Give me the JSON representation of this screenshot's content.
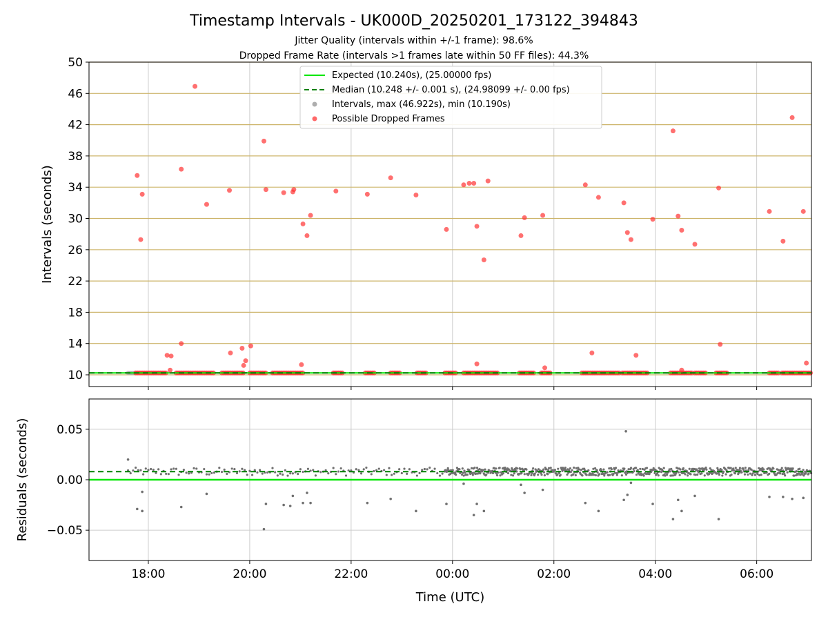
{
  "chart_data": [
    {
      "type": "scatter",
      "title": "Timestamp Intervals - UK000D_20250201_173122_394843",
      "subtitle_lines": [
        "Jitter Quality (intervals within +/-1 frame): 98.6%",
        "Dropped Frame Rate (intervals >1 frames late within 50 FF files): 44.3%"
      ],
      "ylabel": "Intervals (seconds)",
      "ylim": [
        8.5,
        50
      ],
      "yticks": [
        10,
        14,
        18,
        22,
        26,
        30,
        34,
        38,
        42,
        46,
        50
      ],
      "xlim_hours": [
        -7.17,
        7.08
      ],
      "xticks_hours": [
        -6,
        -4,
        -2,
        0,
        2,
        4,
        6
      ],
      "xtick_labels": [
        "18:00",
        "20:00",
        "22:00",
        "00:00",
        "02:00",
        "04:00",
        "06:00"
      ],
      "horizontal_grid_color": "#cdb56b",
      "vertical_grid_color": "#cccccc",
      "legend": {
        "placement": "top-center",
        "entries": [
          {
            "label": "Expected (10.240s), (25.00000 fps)",
            "kind": "line",
            "color": "#00e600"
          },
          {
            "label": "Median (10.248 +/- 0.001 s), (24.98099 +/- 0.00 fps)",
            "kind": "dashed-line",
            "color": "#008000"
          },
          {
            "label": "Intervals, max (46.922s), min (10.190s)",
            "kind": "point",
            "color": "#a0a0a0"
          },
          {
            "label": "Possible Dropped Frames",
            "kind": "point",
            "color": "#ff4d4d"
          }
        ]
      },
      "expected_line": 10.24,
      "median_line": 10.248,
      "baseline_start_hour": -6.4,
      "baseline_points": {
        "y": 10.24,
        "x_ranges_hours": [
          [
            -6.25,
            -5.65
          ],
          [
            -5.45,
            -4.7
          ],
          [
            -4.55,
            -4.1
          ],
          [
            -4.0,
            -3.65
          ],
          [
            -3.55,
            -2.95
          ],
          [
            -2.35,
            -2.15
          ],
          [
            -1.72,
            -1.52
          ],
          [
            -1.22,
            -1.02
          ],
          [
            -0.7,
            -0.5
          ],
          [
            -0.15,
            0.08
          ],
          [
            0.22,
            0.92
          ],
          [
            1.32,
            1.6
          ],
          [
            1.75,
            1.95
          ],
          [
            2.55,
            3.3
          ],
          [
            3.35,
            3.85
          ],
          [
            4.3,
            4.75
          ],
          [
            4.78,
            5.0
          ],
          [
            5.2,
            5.42
          ],
          [
            6.25,
            6.45
          ],
          [
            6.5,
            7.08
          ]
        ]
      },
      "series": [
        {
          "name": "Possible Dropped Frames",
          "color": "#ff4d4d",
          "points": [
            {
              "x": -6.22,
              "y": 35.5
            },
            {
              "x": -6.15,
              "y": 27.3
            },
            {
              "x": -6.12,
              "y": 33.1
            },
            {
              "x": -5.63,
              "y": 12.5
            },
            {
              "x": -5.55,
              "y": 12.4
            },
            {
              "x": -5.57,
              "y": 10.6
            },
            {
              "x": -5.35,
              "y": 36.3
            },
            {
              "x": -5.35,
              "y": 14.0
            },
            {
              "x": -5.08,
              "y": 46.9
            },
            {
              "x": -4.85,
              "y": 31.8
            },
            {
              "x": -4.4,
              "y": 33.6
            },
            {
              "x": -4.38,
              "y": 12.8
            },
            {
              "x": -4.15,
              "y": 13.4
            },
            {
              "x": -4.12,
              "y": 11.2
            },
            {
              "x": -4.08,
              "y": 11.8
            },
            {
              "x": -3.98,
              "y": 13.7
            },
            {
              "x": -3.72,
              "y": 39.9
            },
            {
              "x": -3.68,
              "y": 33.7
            },
            {
              "x": -3.33,
              "y": 33.3
            },
            {
              "x": -3.15,
              "y": 33.4
            },
            {
              "x": -3.13,
              "y": 33.7
            },
            {
              "x": -2.98,
              "y": 11.3
            },
            {
              "x": -2.95,
              "y": 29.3
            },
            {
              "x": -2.87,
              "y": 27.8
            },
            {
              "x": -2.8,
              "y": 30.4
            },
            {
              "x": -2.3,
              "y": 33.5
            },
            {
              "x": -1.68,
              "y": 33.1
            },
            {
              "x": -1.22,
              "y": 35.2
            },
            {
              "x": -0.72,
              "y": 33.0
            },
            {
              "x": -0.12,
              "y": 28.6
            },
            {
              "x": 0.22,
              "y": 34.3
            },
            {
              "x": 0.33,
              "y": 34.5
            },
            {
              "x": 0.42,
              "y": 34.5
            },
            {
              "x": 0.48,
              "y": 11.4
            },
            {
              "x": 0.48,
              "y": 29.0
            },
            {
              "x": 0.62,
              "y": 24.7
            },
            {
              "x": 0.7,
              "y": 34.8
            },
            {
              "x": 1.35,
              "y": 27.8
            },
            {
              "x": 1.42,
              "y": 30.1
            },
            {
              "x": 1.78,
              "y": 30.4
            },
            {
              "x": 1.82,
              "y": 10.9
            },
            {
              "x": 2.62,
              "y": 34.3
            },
            {
              "x": 2.75,
              "y": 12.8
            },
            {
              "x": 2.88,
              "y": 32.7
            },
            {
              "x": 3.38,
              "y": 32.0
            },
            {
              "x": 3.45,
              "y": 28.2
            },
            {
              "x": 3.52,
              "y": 27.3
            },
            {
              "x": 3.62,
              "y": 12.5
            },
            {
              "x": 3.95,
              "y": 29.9
            },
            {
              "x": 4.35,
              "y": 41.2
            },
            {
              "x": 4.45,
              "y": 30.3
            },
            {
              "x": 4.52,
              "y": 28.5
            },
            {
              "x": 4.52,
              "y": 10.6
            },
            {
              "x": 4.78,
              "y": 26.7
            },
            {
              "x": 5.25,
              "y": 33.9
            },
            {
              "x": 5.28,
              "y": 13.9
            },
            {
              "x": 6.25,
              "y": 30.9
            },
            {
              "x": 6.52,
              "y": 27.1
            },
            {
              "x": 6.7,
              "y": 42.9
            },
            {
              "x": 6.92,
              "y": 30.9
            },
            {
              "x": 6.98,
              "y": 11.5
            }
          ]
        }
      ]
    },
    {
      "type": "scatter",
      "ylabel": "Residuals (seconds)",
      "xlabel": "Time (UTC)",
      "ylim": [
        -0.08,
        0.08
      ],
      "yticks": [
        -0.05,
        0.0,
        0.05
      ],
      "ytick_labels": [
        "−0.05",
        "0.00",
        "0.05"
      ],
      "xlim_hours": [
        -7.17,
        7.08
      ],
      "xticks_hours": [
        -6,
        -4,
        -2,
        0,
        2,
        4,
        6
      ],
      "xtick_labels": [
        "18:00",
        "20:00",
        "22:00",
        "00:00",
        "02:00",
        "04:00",
        "06:00"
      ],
      "expected_line": 0.0,
      "median_line": 0.008,
      "residual_band": {
        "center": 0.008,
        "spread": 0.004,
        "sparse_hours": [
          -6.4,
          -0.15
        ],
        "dense_hours": [
          -0.15,
          7.08
        ]
      },
      "series": [
        {
          "name": "Residuals",
          "color": "#707070",
          "points": [
            {
              "x": -6.4,
              "y": 0.02
            },
            {
              "x": -6.22,
              "y": -0.029
            },
            {
              "x": -6.12,
              "y": -0.031
            },
            {
              "x": -6.12,
              "y": -0.012
            },
            {
              "x": -5.35,
              "y": -0.027
            },
            {
              "x": -4.85,
              "y": -0.014
            },
            {
              "x": -3.72,
              "y": -0.049
            },
            {
              "x": -3.68,
              "y": -0.024
            },
            {
              "x": -3.33,
              "y": -0.025
            },
            {
              "x": -3.2,
              "y": -0.026
            },
            {
              "x": -3.15,
              "y": -0.016
            },
            {
              "x": -2.95,
              "y": -0.023
            },
            {
              "x": -2.87,
              "y": -0.013
            },
            {
              "x": -2.8,
              "y": -0.023
            },
            {
              "x": -1.68,
              "y": -0.023
            },
            {
              "x": -1.22,
              "y": -0.019
            },
            {
              "x": -0.72,
              "y": -0.031
            },
            {
              "x": -0.12,
              "y": -0.024
            },
            {
              "x": 0.22,
              "y": -0.004
            },
            {
              "x": 0.42,
              "y": -0.035
            },
            {
              "x": 0.48,
              "y": -0.024
            },
            {
              "x": 0.62,
              "y": -0.031
            },
            {
              "x": 1.35,
              "y": -0.005
            },
            {
              "x": 1.42,
              "y": -0.013
            },
            {
              "x": 1.78,
              "y": -0.01
            },
            {
              "x": 2.62,
              "y": -0.023
            },
            {
              "x": 2.88,
              "y": -0.031
            },
            {
              "x": 3.38,
              "y": -0.02
            },
            {
              "x": 3.42,
              "y": 0.048
            },
            {
              "x": 3.45,
              "y": -0.015
            },
            {
              "x": 3.52,
              "y": -0.003
            },
            {
              "x": 3.95,
              "y": -0.024
            },
            {
              "x": 4.35,
              "y": -0.039
            },
            {
              "x": 4.45,
              "y": -0.02
            },
            {
              "x": 4.52,
              "y": -0.031
            },
            {
              "x": 4.78,
              "y": -0.016
            },
            {
              "x": 5.25,
              "y": -0.039
            },
            {
              "x": 6.25,
              "y": -0.017
            },
            {
              "x": 6.52,
              "y": -0.017
            },
            {
              "x": 6.7,
              "y": -0.019
            },
            {
              "x": 6.92,
              "y": -0.018
            }
          ]
        }
      ]
    }
  ]
}
